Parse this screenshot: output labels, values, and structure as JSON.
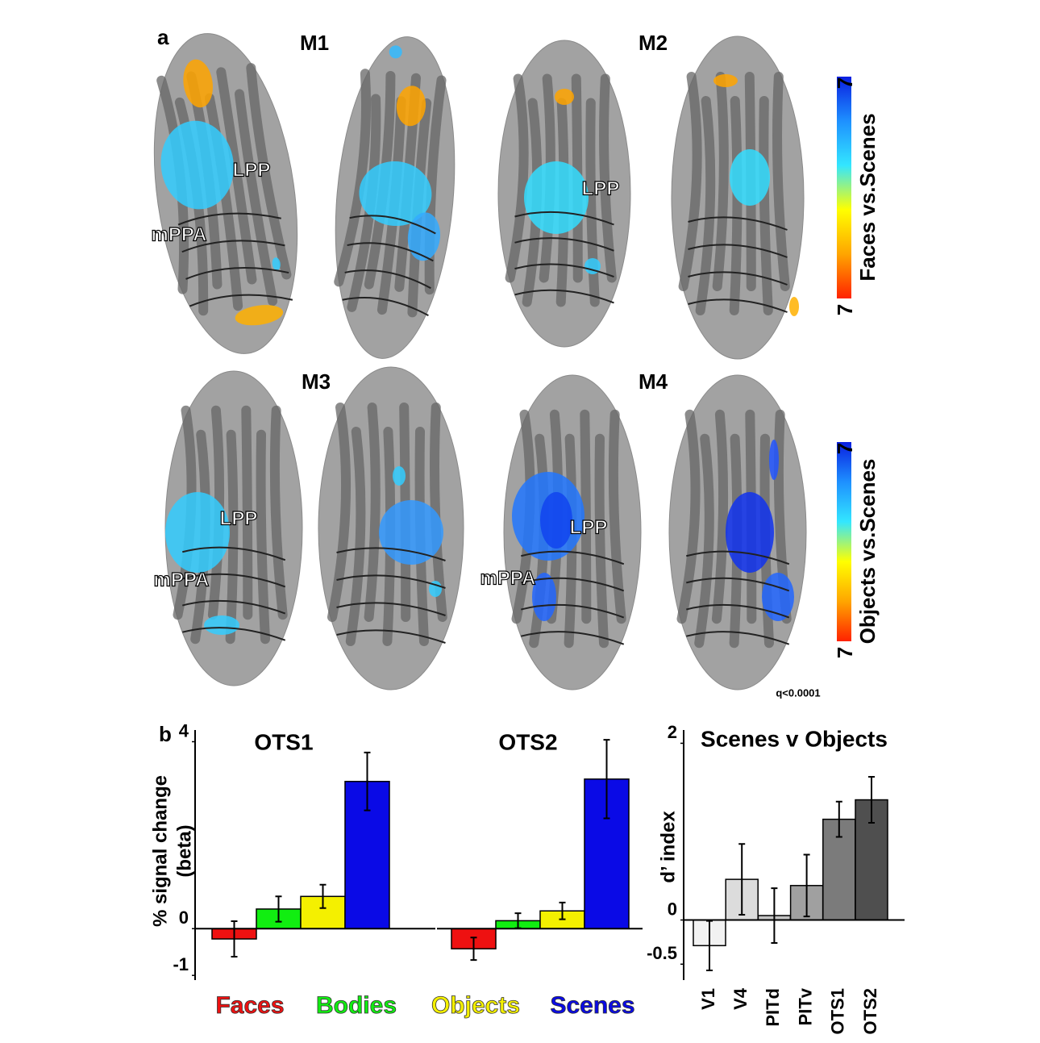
{
  "panel_a": {
    "label": "a",
    "panels": [
      {
        "name": "M1",
        "roi_labels": [
          "LPP",
          "mPPA"
        ]
      },
      {
        "name": "M2",
        "roi_labels": [
          "LPP"
        ]
      },
      {
        "name": "M3",
        "roi_labels": [
          "LPP",
          "mPPA"
        ]
      },
      {
        "name": "M4",
        "roi_labels": [
          "LPP",
          "mPPA"
        ]
      }
    ],
    "colorbars": [
      {
        "title": "Faces vs.Scenes",
        "top_label": "7",
        "bottom_label": "7"
      },
      {
        "title": "Objects vs.Scenes",
        "top_label": "7",
        "bottom_label": "7"
      }
    ],
    "colorbar_colors": [
      "#0a1fe0",
      "#1e90ff",
      "#33e6ff",
      "#ffff00",
      "#ffa500",
      "#ff2200"
    ],
    "note": "q<0.0001"
  },
  "panel_b_label": "b",
  "legend": {
    "labels": [
      "Faces",
      "Bodies",
      "Objects",
      "Scenes"
    ],
    "colors": [
      "#ee1111",
      "#11ee11",
      "#f4f000",
      "#0a0ae6"
    ]
  },
  "chart_data": [
    {
      "type": "bar",
      "title": "OTS1",
      "ylabel_lines": [
        "% signal change",
        "(beta)"
      ],
      "values": [
        -0.22,
        0.42,
        0.69,
        3.15
      ],
      "errors": [
        0.38,
        0.27,
        0.25,
        0.62
      ],
      "ylim": [
        -1.1,
        4.25
      ],
      "yticks": [
        4,
        0,
        -1
      ]
    },
    {
      "type": "bar",
      "title": "OTS2",
      "values": [
        -0.43,
        0.17,
        0.38,
        3.2
      ],
      "errors": [
        0.24,
        0.16,
        0.18,
        0.84
      ],
      "ylim": [
        -1.1,
        4.25
      ]
    },
    {
      "type": "bar",
      "title": "Scenes v Objects",
      "ylabel": "d’ index",
      "categories": [
        "V1",
        "V4",
        "PITd",
        "PITv",
        "OTS1",
        "OTS2"
      ],
      "values": [
        -0.29,
        0.46,
        0.05,
        0.39,
        1.14,
        1.36
      ],
      "errors": [
        0.28,
        0.4,
        0.31,
        0.35,
        0.2,
        0.26
      ],
      "colors": [
        "#f2f2f2",
        "#dcdcdc",
        "#c4c4c4",
        "#a0a0a0",
        "#7b7b7b",
        "#4f4f4f"
      ],
      "ylim": [
        -0.68,
        2.15
      ],
      "yticks": [
        2,
        0,
        -0.5
      ]
    }
  ]
}
